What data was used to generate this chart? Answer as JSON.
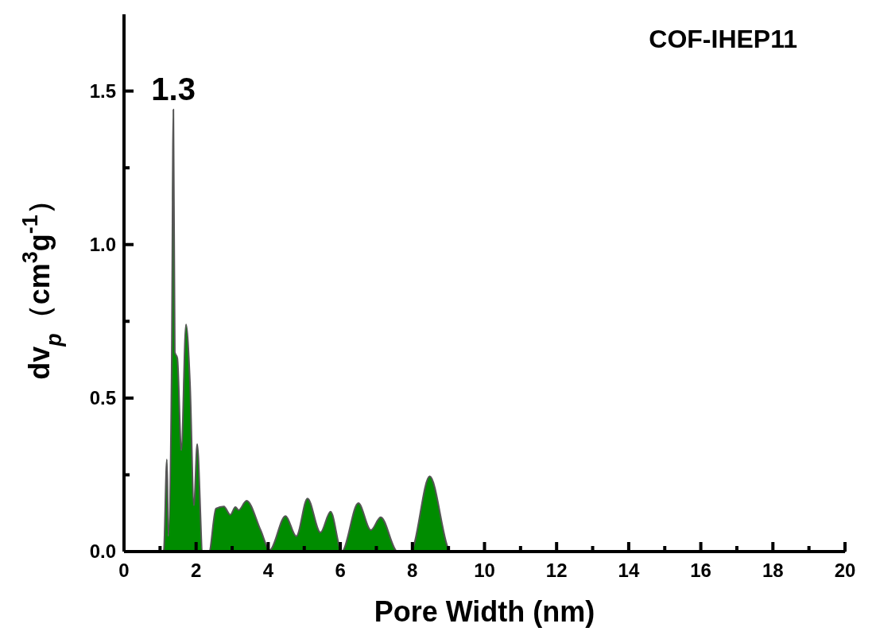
{
  "chart_data": {
    "type": "area",
    "title": "COF-IHEP11",
    "xlabel": "Pore Width (nm)",
    "ylabel": "dv$_{p}$（cm$^{3}$g$^{-1}$）",
    "annotations": [
      {
        "text": "1.3",
        "x": 1.37,
        "y": 1.44
      }
    ],
    "series": [
      {
        "color": "#008c00",
        "x": [
          1.0,
          1.1,
          1.19,
          1.23,
          1.32,
          1.37,
          1.41,
          1.48,
          1.59,
          1.72,
          1.83,
          1.94,
          2.03,
          2.18,
          2.36,
          2.55,
          2.77,
          2.95,
          3.09,
          3.18,
          3.4,
          3.79,
          4.04,
          4.48,
          4.78,
          5.09,
          5.45,
          5.73,
          6.04,
          6.5,
          6.85,
          7.12,
          7.59,
          7.95,
          8.48,
          9.06,
          20
        ],
        "values": [
          0,
          0,
          0.3,
          0.05,
          0.57,
          1.44,
          0.65,
          0.63,
          0.33,
          0.74,
          0.55,
          0.15,
          0.35,
          0,
          0,
          0.14,
          0.147,
          0.12,
          0.145,
          0.135,
          0.166,
          0.07,
          0.005,
          0.116,
          0.05,
          0.173,
          0.062,
          0.13,
          0,
          0.158,
          0.07,
          0.112,
          0,
          0,
          0.245,
          0,
          0
        ]
      }
    ],
    "xlim": [
      0,
      20
    ],
    "xticks": [
      0,
      {
        "value": 1,
        "label": null
      },
      2,
      {
        "value": 3,
        "label": null
      },
      4,
      {
        "value": 5,
        "label": null
      },
      6,
      {
        "value": 7,
        "label": null
      },
      8,
      {
        "value": 9,
        "label": null
      },
      10,
      {
        "value": 11,
        "label": null
      },
      12,
      {
        "value": 13,
        "label": null
      },
      14,
      {
        "value": 15,
        "label": null
      },
      16,
      {
        "value": 17,
        "label": null
      },
      18,
      {
        "value": 19,
        "label": null
      },
      20
    ],
    "ylim": [
      0,
      1.75
    ],
    "yticks": [
      {
        "value": 0,
        "label": "0.0"
      },
      {
        "value": 0.25,
        "label": null
      },
      {
        "value": 0.5,
        "label": "0.5"
      },
      {
        "value": 0.75,
        "label": null
      },
      {
        "value": 1,
        "label": "1.0"
      },
      {
        "value": 1.25,
        "label": null
      },
      {
        "value": 1.5,
        "label": "1.5"
      }
    ],
    "grid": false
  }
}
